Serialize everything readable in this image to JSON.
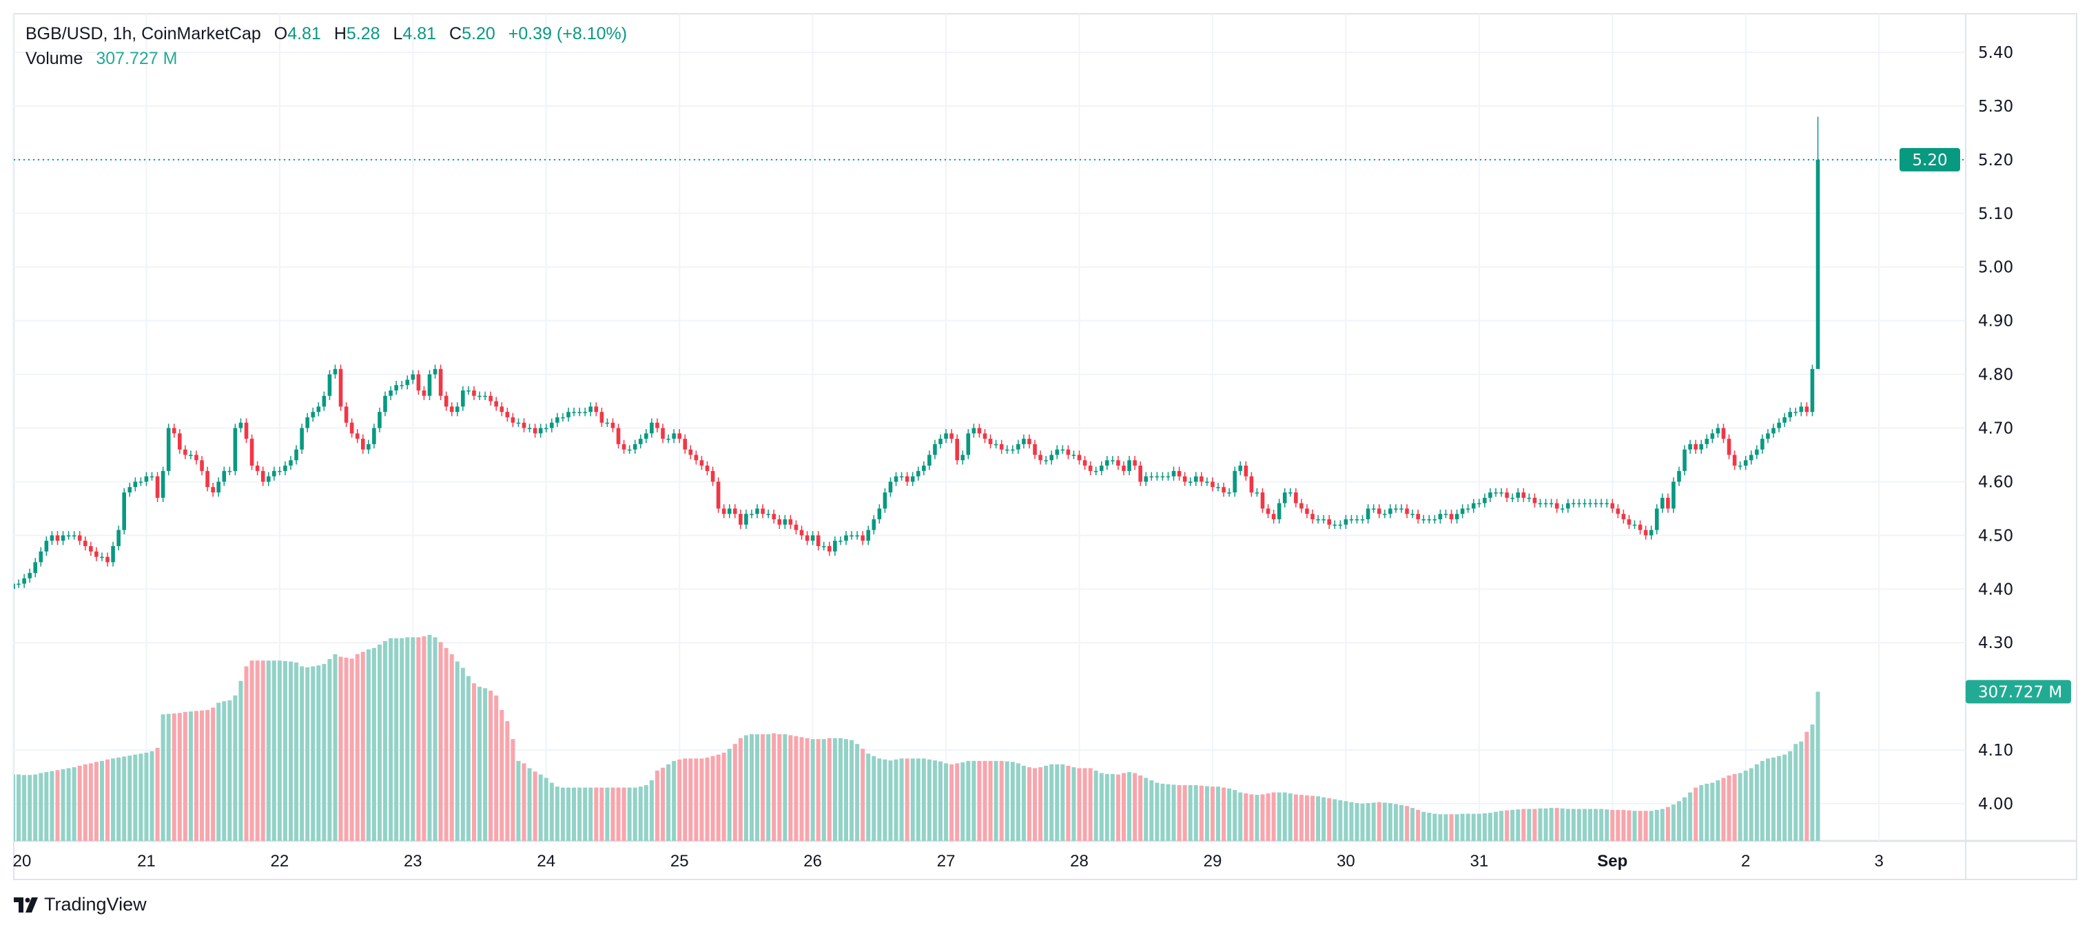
{
  "header": {
    "symbol": "BGB/USD, 1h, CoinMarketCap",
    "o_label": "O",
    "o_value": "4.81",
    "h_label": "H",
    "h_value": "5.28",
    "l_label": "L",
    "l_value": "4.81",
    "c_label": "C",
    "c_value": "5.20",
    "change": "+0.39 (+8.10%)",
    "volume_label": "Volume",
    "volume_value": "307.727 M"
  },
  "branding": {
    "logo_text": "TradingView"
  },
  "colors": {
    "up": "#089981",
    "down": "#f23645",
    "volume_up": "#92d2c7",
    "volume_down": "#f8a5ac",
    "last_price": "#089981",
    "volume_badge": "#22ab94"
  },
  "chart_data": {
    "type": "candlestick",
    "interval": "1h",
    "y_ticks": [
      "5.40",
      "5.30",
      "5.20",
      "5.10",
      "5.00",
      "4.90",
      "4.80",
      "4.70",
      "4.60",
      "4.50",
      "4.40",
      "4.30",
      "4.10",
      "4.00"
    ],
    "ylim": [
      3.93,
      5.45
    ],
    "x_ticks": [
      "20",
      "21",
      "22",
      "23",
      "24",
      "25",
      "26",
      "27",
      "28",
      "29",
      "30",
      "31",
      "Sep",
      "2",
      "3"
    ],
    "last_price_label": "5.20",
    "last_volume_label": "307.727 M",
    "first_open": 4.4,
    "last_candle": {
      "open": 4.81,
      "high": 5.28,
      "low": 4.81,
      "close": 5.2
    },
    "close": [
      4.41,
      4.41,
      4.42,
      4.43,
      4.45,
      4.47,
      4.49,
      4.5,
      4.49,
      4.5,
      4.5,
      4.5,
      4.49,
      4.48,
      4.47,
      4.46,
      4.46,
      4.45,
      4.48,
      4.51,
      4.58,
      4.59,
      4.6,
      4.6,
      4.61,
      4.61,
      4.57,
      4.62,
      4.7,
      4.69,
      4.66,
      4.65,
      4.65,
      4.64,
      4.62,
      4.59,
      4.58,
      4.6,
      4.62,
      4.62,
      4.7,
      4.71,
      4.68,
      4.63,
      4.62,
      4.6,
      4.61,
      4.62,
      4.62,
      4.63,
      4.64,
      4.66,
      4.7,
      4.72,
      4.73,
      4.74,
      4.76,
      4.8,
      4.81,
      4.74,
      4.71,
      4.69,
      4.68,
      4.66,
      4.67,
      4.7,
      4.73,
      4.76,
      4.77,
      4.78,
      4.78,
      4.79,
      4.8,
      4.77,
      4.76,
      4.8,
      4.81,
      4.76,
      4.74,
      4.73,
      4.74,
      4.77,
      4.77,
      4.76,
      4.76,
      4.76,
      4.75,
      4.74,
      4.73,
      4.72,
      4.71,
      4.71,
      4.7,
      4.7,
      4.69,
      4.7,
      4.7,
      4.71,
      4.72,
      4.72,
      4.73,
      4.73,
      4.73,
      4.73,
      4.74,
      4.73,
      4.71,
      4.71,
      4.7,
      4.67,
      4.66,
      4.66,
      4.67,
      4.68,
      4.69,
      4.71,
      4.7,
      4.68,
      4.68,
      4.69,
      4.68,
      4.66,
      4.65,
      4.64,
      4.63,
      4.62,
      4.6,
      4.55,
      4.54,
      4.55,
      4.54,
      4.52,
      4.54,
      4.54,
      4.55,
      4.54,
      4.54,
      4.53,
      4.52,
      4.53,
      4.52,
      4.51,
      4.5,
      4.49,
      4.5,
      4.48,
      4.48,
      4.47,
      4.49,
      4.49,
      4.5,
      4.5,
      4.5,
      4.49,
      4.51,
      4.53,
      4.55,
      4.58,
      4.6,
      4.61,
      4.61,
      4.6,
      4.61,
      4.62,
      4.63,
      4.65,
      4.67,
      4.68,
      4.69,
      4.68,
      4.64,
      4.65,
      4.69,
      4.7,
      4.69,
      4.68,
      4.67,
      4.67,
      4.66,
      4.66,
      4.66,
      4.67,
      4.68,
      4.67,
      4.65,
      4.64,
      4.64,
      4.65,
      4.66,
      4.66,
      4.65,
      4.65,
      4.64,
      4.63,
      4.62,
      4.62,
      4.63,
      4.64,
      4.64,
      4.63,
      4.62,
      4.64,
      4.63,
      4.6,
      4.61,
      4.61,
      4.61,
      4.61,
      4.61,
      4.62,
      4.61,
      4.6,
      4.6,
      4.61,
      4.6,
      4.6,
      4.59,
      4.59,
      4.58,
      4.58,
      4.62,
      4.63,
      4.61,
      4.58,
      4.58,
      4.55,
      4.54,
      4.53,
      4.56,
      4.58,
      4.58,
      4.56,
      4.55,
      4.54,
      4.53,
      4.53,
      4.53,
      4.52,
      4.52,
      4.52,
      4.53,
      4.53,
      4.53,
      4.53,
      4.55,
      4.55,
      4.54,
      4.54,
      4.55,
      4.55,
      4.55,
      4.54,
      4.54,
      4.53,
      4.53,
      4.53,
      4.53,
      4.54,
      4.54,
      4.53,
      4.54,
      4.55,
      4.55,
      4.56,
      4.56,
      4.57,
      4.58,
      4.58,
      4.58,
      4.57,
      4.57,
      4.58,
      4.57,
      4.57,
      4.56,
      4.56,
      4.56,
      4.56,
      4.55,
      4.55,
      4.56,
      4.56,
      4.56,
      4.56,
      4.56,
      4.56,
      4.56,
      4.56,
      4.55,
      4.54,
      4.53,
      4.52,
      4.52,
      4.51,
      4.5,
      4.51,
      4.55,
      4.57,
      4.55,
      4.6,
      4.62,
      4.66,
      4.67,
      4.66,
      4.67,
      4.68,
      4.69,
      4.7,
      4.68,
      4.65,
      4.63,
      4.63,
      4.64,
      4.65,
      4.66,
      4.68,
      4.69,
      4.7,
      4.71,
      4.72,
      4.73,
      4.73,
      4.74,
      4.73,
      4.81,
      5.2
    ],
    "volume_millions": [
      137,
      137,
      136,
      136,
      137,
      140,
      142,
      144,
      146,
      148,
      150,
      152,
      155,
      158,
      160,
      163,
      165,
      168,
      170,
      172,
      174,
      176,
      178,
      180,
      182,
      185,
      192,
      261,
      262,
      263,
      264,
      266,
      267,
      268,
      269,
      270,
      275,
      285,
      288,
      290,
      300,
      330,
      360,
      372,
      372,
      372,
      372,
      372,
      372,
      371,
      370,
      368,
      360,
      358,
      360,
      362,
      365,
      375,
      385,
      380,
      378,
      376,
      385,
      390,
      395,
      398,
      405,
      412,
      418,
      418,
      418,
      420,
      420,
      420,
      422,
      425,
      420,
      410,
      398,
      385,
      370,
      357,
      340,
      325,
      318,
      315,
      310,
      300,
      270,
      247,
      210,
      165,
      160,
      150,
      143,
      137,
      130,
      120,
      112,
      110,
      110,
      110,
      110,
      110,
      110,
      110,
      110,
      110,
      110,
      110,
      110,
      110,
      110,
      112,
      115,
      125,
      145,
      151,
      158,
      165,
      168,
      170,
      170,
      170,
      170,
      172,
      175,
      178,
      182,
      190,
      200,
      212,
      218,
      220,
      220,
      220,
      220,
      222,
      220,
      220,
      218,
      216,
      214,
      212,
      210,
      210,
      210,
      212,
      212,
      212,
      210,
      208,
      200,
      190,
      180,
      175,
      170,
      168,
      166,
      168,
      170,
      170,
      170,
      170,
      170,
      168,
      166,
      164,
      160,
      158,
      160,
      162,
      165,
      165,
      165,
      165,
      165,
      165,
      165,
      164,
      163,
      160,
      155,
      152,
      150,
      152,
      155,
      158,
      158,
      158,
      155,
      152,
      150,
      150,
      150,
      145,
      140,
      138,
      138,
      137,
      140,
      142,
      140,
      135,
      130,
      125,
      120,
      118,
      117,
      116,
      115,
      115,
      115,
      115,
      114,
      113,
      112,
      112,
      110,
      108,
      105,
      100,
      98,
      96,
      95,
      96,
      98,
      100,
      100,
      100,
      98,
      96,
      95,
      94,
      93,
      92,
      90,
      88,
      86,
      84,
      82,
      80,
      78,
      77,
      78,
      79,
      80,
      79,
      78,
      76,
      74,
      72,
      68,
      64,
      60,
      58,
      56,
      55,
      55,
      55,
      55,
      56,
      56,
      56,
      56,
      57,
      58,
      60,
      62,
      63,
      64,
      65,
      66,
      66,
      66,
      67,
      67,
      68,
      68,
      67,
      66,
      66,
      66,
      66,
      66,
      66,
      66,
      65,
      64,
      64,
      64,
      63,
      62,
      62,
      62,
      62,
      64,
      66,
      70,
      75,
      82,
      90,
      100,
      110,
      115,
      118,
      120,
      125,
      130,
      135,
      138,
      140,
      145,
      150,
      158,
      165,
      170,
      172,
      175,
      178,
      185,
      200,
      205,
      225,
      240,
      307.727
    ]
  }
}
